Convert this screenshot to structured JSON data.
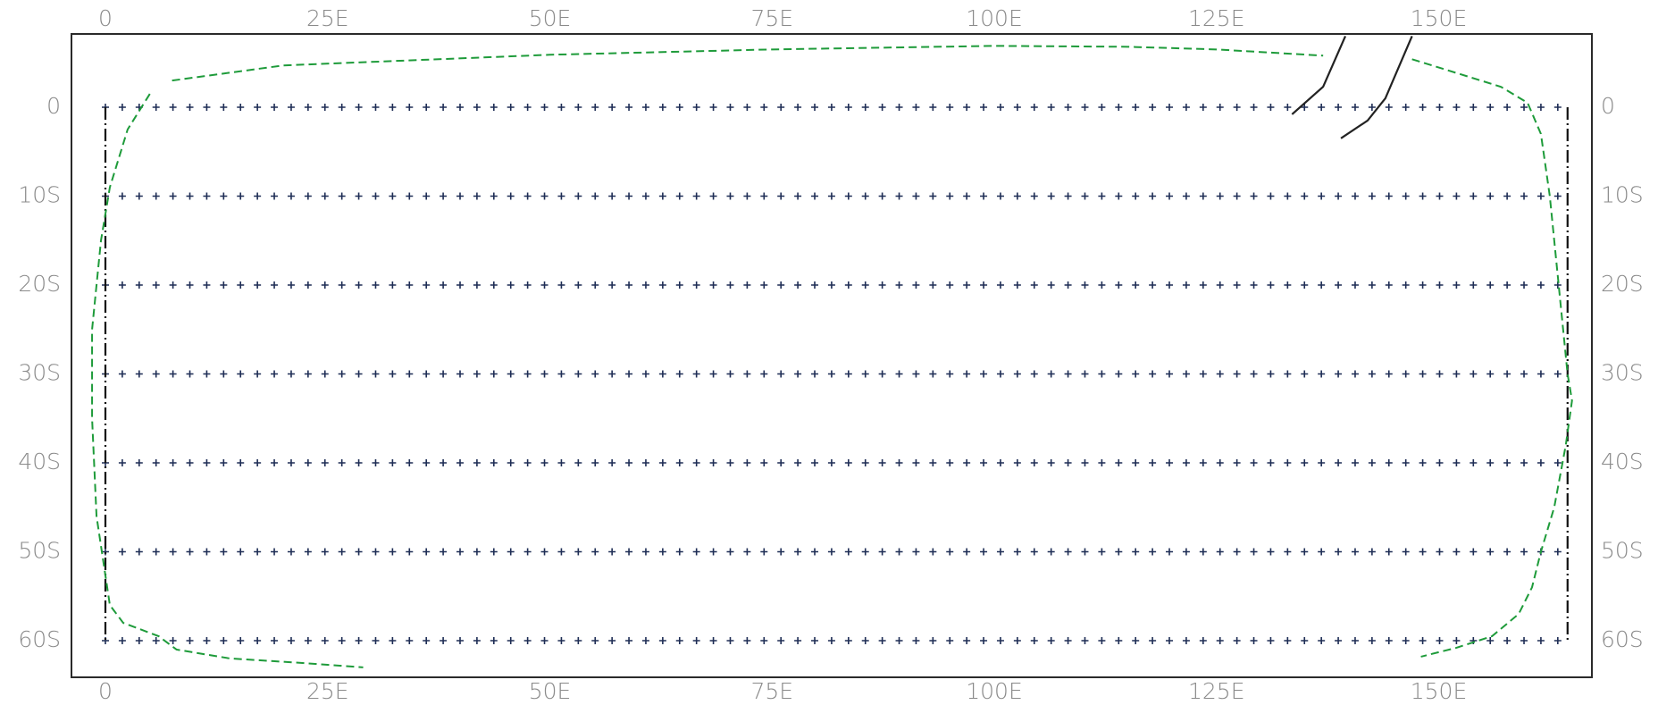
{
  "map": {
    "lon_range": [
      0,
      165
    ],
    "lat_range": [
      -65,
      7
    ],
    "colors": {
      "frame": "#2a2a2a",
      "grid_marks": "#1e2d55",
      "boundary_dashdot": "#111111",
      "coastline_dashed": "#1e9b3a",
      "track_lines": "#222222",
      "tick_labels": "#8a8a8a"
    },
    "top_axis_labels": [
      {
        "lon": 0,
        "text": "0"
      },
      {
        "lon": 25,
        "text": "25E"
      },
      {
        "lon": 50,
        "text": "50E"
      },
      {
        "lon": 75,
        "text": "75E"
      },
      {
        "lon": 100,
        "text": "100E"
      },
      {
        "lon": 125,
        "text": "125E"
      },
      {
        "lon": 150,
        "text": "150E"
      }
    ],
    "bottom_axis_labels": [
      {
        "lon": 0,
        "text": "0"
      },
      {
        "lon": 25,
        "text": "25E"
      },
      {
        "lon": 50,
        "text": "50E"
      },
      {
        "lon": 75,
        "text": "75E"
      },
      {
        "lon": 100,
        "text": "100E"
      },
      {
        "lon": 125,
        "text": "125E"
      },
      {
        "lon": 150,
        "text": "150E"
      }
    ],
    "left_axis_labels": [
      {
        "lat": 0,
        "text": "0"
      },
      {
        "lat": -10,
        "text": "10S"
      },
      {
        "lat": -20,
        "text": "20S"
      },
      {
        "lat": -30,
        "text": "30S"
      },
      {
        "lat": -40,
        "text": "40S"
      },
      {
        "lat": -50,
        "text": "50S"
      },
      {
        "lat": -60,
        "text": "60S"
      }
    ],
    "right_axis_labels": [
      {
        "lat": 0,
        "text": "0"
      },
      {
        "lat": -10,
        "text": "10S"
      },
      {
        "lat": -20,
        "text": "20S"
      },
      {
        "lat": -30,
        "text": "30S"
      },
      {
        "lat": -40,
        "text": "40S"
      },
      {
        "lat": -50,
        "text": "50S"
      },
      {
        "lat": -60,
        "text": "60S"
      }
    ],
    "grid_points": {
      "lon_start": 0,
      "lon_end": 164.5,
      "lon_step": 1.9,
      "lats": [
        0,
        -10,
        -20,
        -30,
        -40,
        -50,
        -60
      ]
    },
    "boundary_lons": [
      0,
      164.5
    ],
    "boundary_lat_range": [
      0,
      -60
    ],
    "coastline": [
      [
        [
          7.5,
          3
        ],
        [
          20,
          4.7
        ],
        [
          50,
          5.9
        ],
        [
          75,
          6.5
        ],
        [
          100,
          6.9
        ],
        [
          115,
          6.8
        ],
        [
          125,
          6.5
        ],
        [
          137,
          5.8
        ]
      ],
      [
        [
          147,
          5.4
        ],
        [
          157,
          2.3
        ],
        [
          160,
          0.5
        ],
        [
          161.5,
          -3
        ],
        [
          162.5,
          -10
        ],
        [
          163.5,
          -20
        ],
        [
          164.5,
          -30
        ],
        [
          165,
          -33
        ],
        [
          164.3,
          -38
        ],
        [
          163,
          -45
        ],
        [
          161.5,
          -50
        ],
        [
          160.5,
          -54
        ],
        [
          159,
          -57
        ],
        [
          156,
          -59.5
        ],
        [
          152,
          -60.8
        ],
        [
          148,
          -61.8
        ]
      ],
      [
        [
          5,
          1.5
        ],
        [
          2.5,
          -2.5
        ],
        [
          0.5,
          -9
        ],
        [
          -0.5,
          -15
        ],
        [
          -1.5,
          -25
        ],
        [
          -1.5,
          -35
        ],
        [
          -1,
          -46
        ],
        [
          0.5,
          -56
        ],
        [
          2,
          -58
        ],
        [
          6,
          -59.5
        ],
        [
          8,
          -61
        ],
        [
          14,
          -62
        ],
        [
          22,
          -62.5
        ],
        [
          29,
          -63
        ]
      ]
    ],
    "tracks": [
      [
        [
          139.5,
          8
        ],
        [
          137,
          2.3
        ],
        [
          133.5,
          -0.8
        ]
      ],
      [
        [
          147,
          8
        ],
        [
          144,
          1
        ],
        [
          142,
          -1.5
        ],
        [
          139,
          -3.5
        ]
      ]
    ]
  }
}
